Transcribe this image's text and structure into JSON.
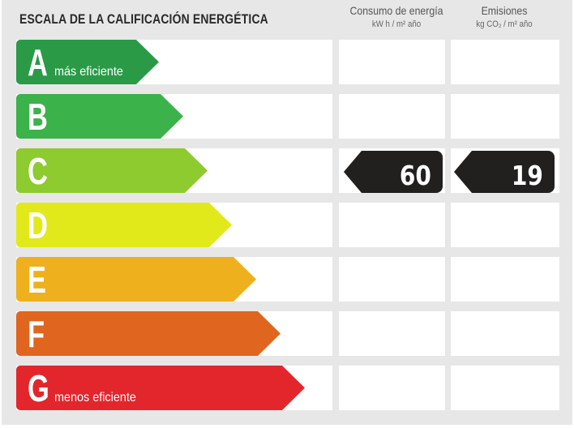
{
  "title": "ESCALA DE LA CALIFICACIÓN ENERGÉTICA",
  "columns": {
    "consumo": {
      "label": "Consumo de energía",
      "unit": "kW h / m² año"
    },
    "emisiones": {
      "label": "Emisiones",
      "unit": "kg CO₂ / m² año"
    }
  },
  "ratings": [
    {
      "letter": "A",
      "caption": "más eficiente",
      "color": "#2a9a47"
    },
    {
      "letter": "B",
      "caption": "",
      "color": "#3cb24a"
    },
    {
      "letter": "C",
      "caption": "",
      "color": "#8dcb2f"
    },
    {
      "letter": "D",
      "caption": "",
      "color": "#e2e91a"
    },
    {
      "letter": "E",
      "caption": "",
      "color": "#eeb01c"
    },
    {
      "letter": "F",
      "caption": "",
      "color": "#e0651f"
    },
    {
      "letter": "G",
      "caption": "menos eficiente",
      "color": "#e2262b"
    }
  ],
  "current": {
    "rating": "C",
    "consumo": "60",
    "emisiones": "19",
    "badge_color": "#221f1f"
  }
}
